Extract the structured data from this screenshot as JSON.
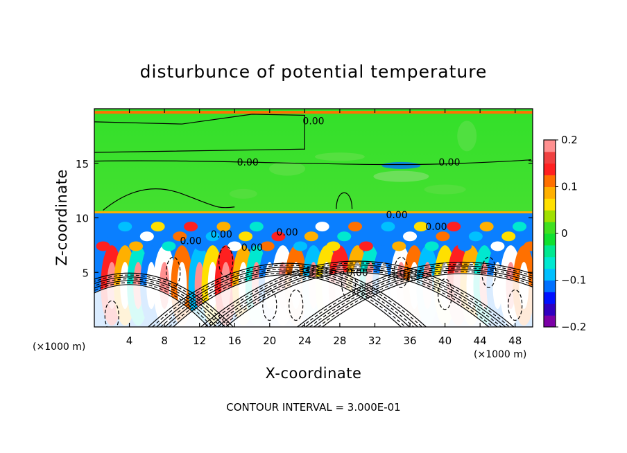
{
  "chart_data": {
    "type": "heatmap",
    "title": "disturbunce of potential temperature",
    "xlabel": "X-coordinate",
    "ylabel": "Z-coordinate",
    "x_unit": "(×1000 m)",
    "x_unit_right": "(×1000 m)",
    "xlim": [
      0,
      50
    ],
    "ylim": [
      0,
      20
    ],
    "x_ticks": [
      "4",
      "8",
      "12",
      "16",
      "20",
      "24",
      "28",
      "32",
      "36",
      "40",
      "44",
      "48"
    ],
    "y_ticks": [
      "5",
      "10",
      "15"
    ],
    "colorbar": {
      "range": [
        -0.2,
        0.2
      ],
      "ticks": [
        "0.2",
        "0.1",
        "0",
        "−0.1",
        "−0.2"
      ],
      "colors": [
        "#7b00a6",
        "#3000c0",
        "#0010ff",
        "#0070ff",
        "#00c0ff",
        "#00e8d0",
        "#00e890",
        "#10e030",
        "#40e020",
        "#a0e000",
        "#ffe000",
        "#ffb000",
        "#ff7000",
        "#ff2020",
        "#f04040",
        "#ff9090"
      ]
    },
    "contour_labels": [
      "0.00",
      "0.00",
      "0.00",
      "0.00",
      "0.00",
      "0.00",
      "0.00",
      "0.00",
      "0.00",
      "0.00"
    ],
    "footer": "CONTOUR INTERVAL = 3.000E-01",
    "fields": {
      "upper_layer": "near 0 (green) above z≈10.5",
      "lower_layer": "strong alternating positive/negative anomalies below z≈10.5",
      "hills_centered_at_x": [
        4,
        22,
        30,
        42
      ]
    }
  }
}
